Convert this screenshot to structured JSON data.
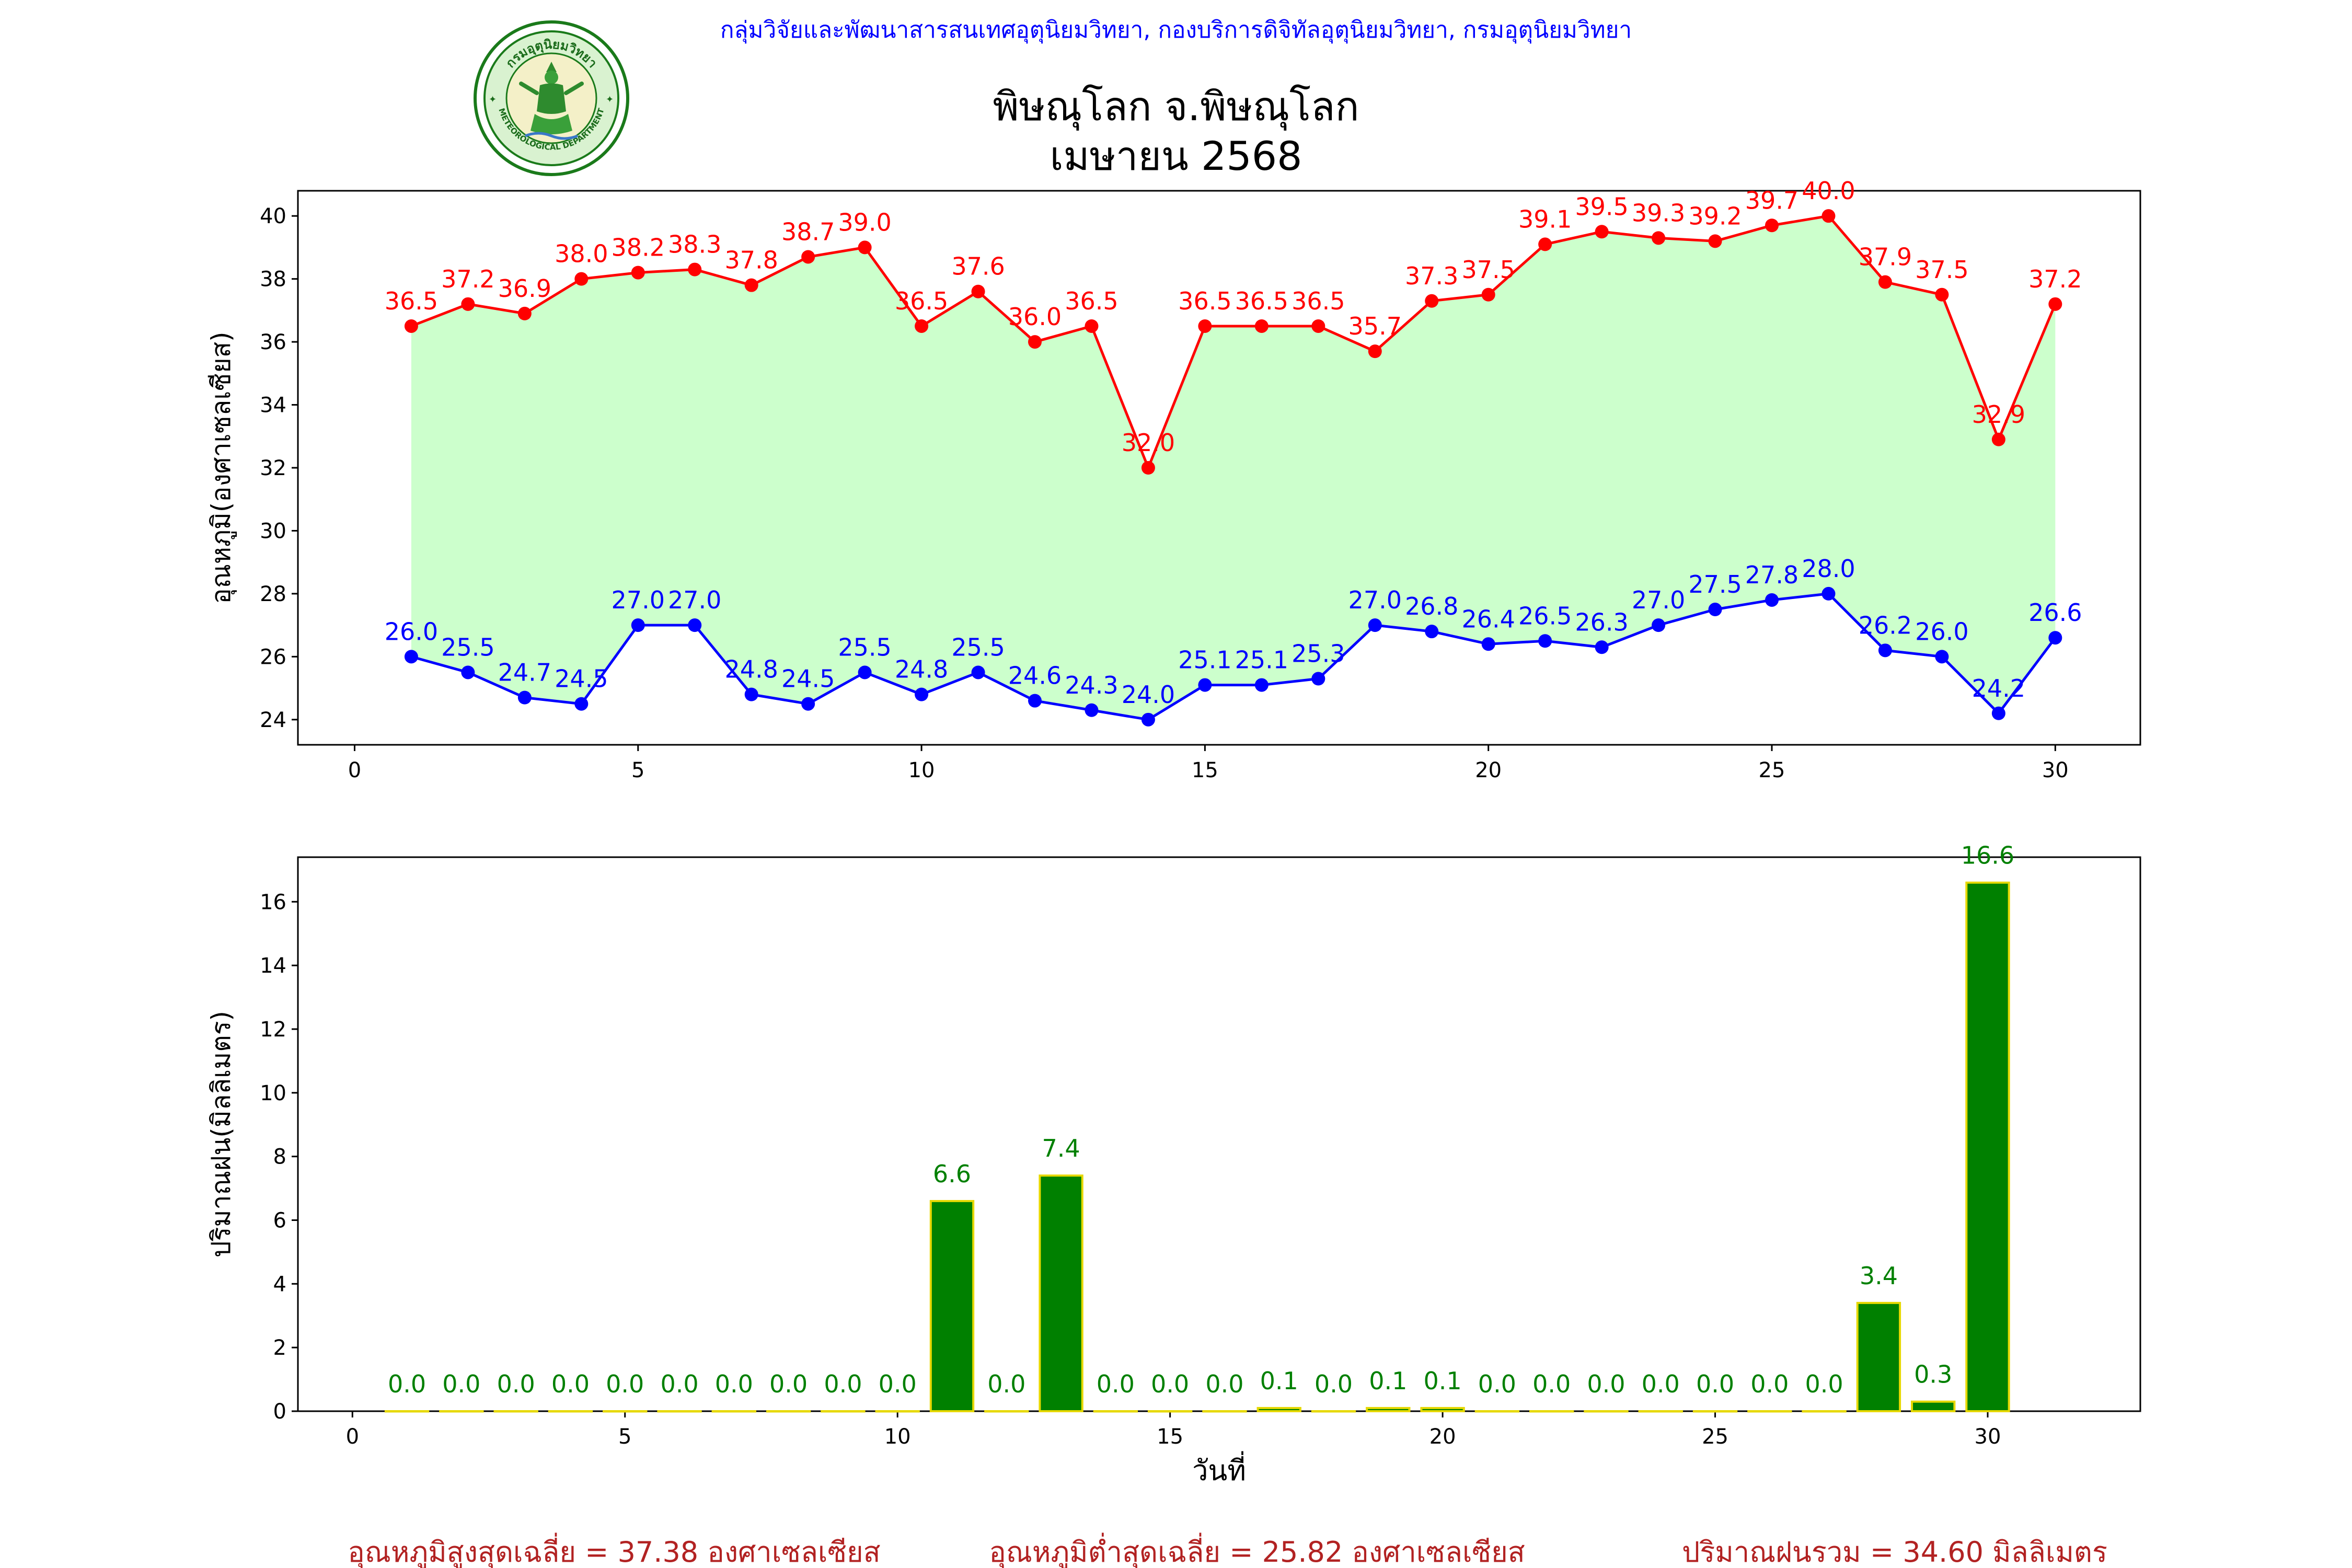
{
  "header": {
    "agency": "กลุ่มวิจัยและพัฒนาสารสนเทศอุตุนิยมวิทยา, กองบริการดิจิทัลอุตุนิยมวิทยา, กรมอุตุนิยมวิทยา",
    "title_line1": "พิษณุโลก จ.พิษณุโลก",
    "title_line2": "เมษายน 2568",
    "logo_text": "กรมอุตุนิยมวิทยา",
    "logo_subtext": "METEOROLOGICAL DEPARTMENT"
  },
  "footer": {
    "avg_max": "อุณหภูมิสูงสุดเฉลี่ย = 37.38 องศาเซลเซียส",
    "avg_min": "อุณหภูมิต่ำสุดเฉลี่ย = 25.82 องศาเซลเซียส",
    "total_rain": "ปริมาณฝนรวม = 34.60 มิลลิเมตร"
  },
  "colors": {
    "max_line": "#ff0000",
    "min_line": "#0000ff",
    "fill": "#ccffcc",
    "rain_bar": "#008000",
    "rain_edge": "#e6d800",
    "rain_label": "#008000",
    "header_text": "#0000ff",
    "footer_text": "#b22222"
  },
  "chart_data": [
    {
      "type": "line",
      "ylabel": "อุณหภูมิ(องศาเซลเซียส)",
      "xlabel": "",
      "xlim": [
        -1,
        31.5
      ],
      "ylim": [
        23.2,
        40.8
      ],
      "xticks": [
        0,
        5,
        10,
        15,
        20,
        25,
        30
      ],
      "yticks": [
        24,
        26,
        28,
        30,
        32,
        34,
        36,
        38,
        40
      ],
      "x": [
        1,
        2,
        3,
        4,
        5,
        6,
        7,
        8,
        9,
        10,
        11,
        12,
        13,
        14,
        15,
        16,
        17,
        18,
        19,
        20,
        21,
        22,
        23,
        24,
        25,
        26,
        27,
        28,
        29,
        30
      ],
      "series": [
        {
          "key": "max",
          "values": [
            36.5,
            37.2,
            36.9,
            38.0,
            38.2,
            38.3,
            37.8,
            38.7,
            39.0,
            36.5,
            37.6,
            36.0,
            36.5,
            32.0,
            36.5,
            36.5,
            36.5,
            35.7,
            37.3,
            37.5,
            39.1,
            39.5,
            39.3,
            39.2,
            39.7,
            40.0,
            37.9,
            37.5,
            32.9,
            37.2
          ]
        },
        {
          "key": "min",
          "values": [
            26.0,
            25.5,
            24.7,
            24.5,
            27.0,
            27.0,
            24.8,
            24.5,
            25.5,
            24.8,
            25.5,
            24.6,
            24.3,
            24.0,
            25.1,
            25.1,
            25.3,
            27.0,
            26.8,
            26.4,
            26.5,
            26.3,
            27.0,
            27.5,
            27.8,
            28.0,
            26.2,
            26.0,
            24.2,
            26.6
          ]
        }
      ],
      "fill_between": true
    },
    {
      "type": "bar",
      "ylabel": "ปริมาณฝน(มิลลิเมตร)",
      "xlabel": "วันที่",
      "xlim": [
        -1,
        32.8
      ],
      "ylim": [
        0,
        17.4
      ],
      "xticks": [
        0,
        5,
        10,
        15,
        20,
        25,
        30
      ],
      "yticks": [
        0,
        2,
        4,
        6,
        8,
        10,
        12,
        14,
        16
      ],
      "x": [
        1,
        2,
        3,
        4,
        5,
        6,
        7,
        8,
        9,
        10,
        11,
        12,
        13,
        14,
        15,
        16,
        17,
        18,
        19,
        20,
        21,
        22,
        23,
        24,
        25,
        26,
        27,
        28,
        29,
        30
      ],
      "values": [
        0.0,
        0.0,
        0.0,
        0.0,
        0.0,
        0.0,
        0.0,
        0.0,
        0.0,
        0.0,
        6.6,
        0.0,
        7.4,
        0.0,
        0.0,
        0.0,
        0.1,
        0.0,
        0.1,
        0.1,
        0.0,
        0.0,
        0.0,
        0.0,
        0.0,
        0.0,
        0.0,
        3.4,
        0.3,
        16.6
      ]
    }
  ]
}
